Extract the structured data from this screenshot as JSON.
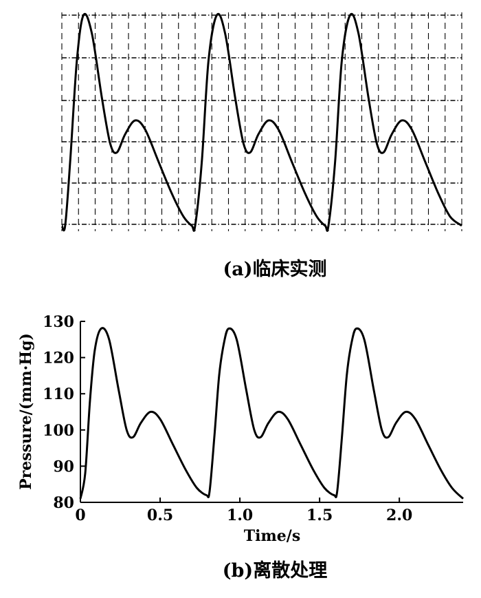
{
  "chart_data": [
    {
      "type": "line",
      "caption": "(a)临床实测",
      "grid": true,
      "series": [
        {
          "x": [
            0.0,
            0.02,
            0.05,
            0.09,
            0.13,
            0.18,
            0.24,
            0.29,
            0.33,
            0.38,
            0.44,
            0.5,
            0.58,
            0.66,
            0.73,
            0.78,
            0.8,
            0.84,
            0.88,
            0.93,
            0.98,
            1.04,
            1.09,
            1.13,
            1.18,
            1.24,
            1.3,
            1.38,
            1.46,
            1.53,
            1.58,
            1.6,
            1.64,
            1.68,
            1.73,
            1.78,
            1.84,
            1.89,
            1.93,
            1.98,
            2.04,
            2.1,
            2.18,
            2.26,
            2.33,
            2.4
          ],
          "y": [
            82,
            82,
            96,
            118,
            128,
            124,
            110,
            100,
            98,
            102,
            105,
            103,
            96,
            89,
            84,
            82,
            82,
            96,
            118,
            128,
            124,
            110,
            100,
            98,
            102,
            105,
            103,
            96,
            89,
            84,
            82,
            82,
            96,
            118,
            128,
            124,
            110,
            100,
            98,
            102,
            105,
            103,
            96,
            89,
            84,
            82
          ]
        }
      ]
    },
    {
      "type": "line",
      "caption": "(b)离散处理",
      "xlabel": "Time/s",
      "ylabel": "Pressure/(mm·Hg)",
      "xlim": [
        0,
        2.4
      ],
      "ylim": [
        80,
        130
      ],
      "xticks": [
        0,
        0.5,
        1.0,
        1.5,
        2.0
      ],
      "xtick_labels": [
        "0",
        "0.5",
        "1.0",
        "1.5",
        "2.0"
      ],
      "yticks": [
        80,
        90,
        100,
        110,
        120,
        130
      ],
      "ytick_labels": [
        "80",
        "90",
        "100",
        "110",
        "120",
        "130"
      ],
      "grid": false,
      "series": [
        {
          "x": [
            0.0,
            0.03,
            0.06,
            0.09,
            0.13,
            0.18,
            0.24,
            0.29,
            0.33,
            0.38,
            0.44,
            0.5,
            0.58,
            0.66,
            0.73,
            0.79,
            0.81,
            0.84,
            0.87,
            0.9,
            0.93,
            0.98,
            1.04,
            1.09,
            1.13,
            1.18,
            1.24,
            1.3,
            1.38,
            1.46,
            1.53,
            1.59,
            1.61,
            1.64,
            1.67,
            1.7,
            1.73,
            1.78,
            1.84,
            1.89,
            1.93,
            1.98,
            2.04,
            2.1,
            2.18,
            2.26,
            2.33,
            2.4
          ],
          "y": [
            81,
            88,
            108,
            122,
            128,
            125,
            111,
            100,
            98,
            102,
            105,
            103,
            96,
            89,
            84,
            82,
            83,
            98,
            115,
            124,
            128,
            125,
            111,
            100,
            98,
            102,
            105,
            103,
            96,
            89,
            84,
            82,
            83,
            98,
            115,
            124,
            128,
            125,
            111,
            100,
            98,
            102,
            105,
            103,
            96,
            89,
            84,
            81
          ]
        }
      ]
    }
  ]
}
